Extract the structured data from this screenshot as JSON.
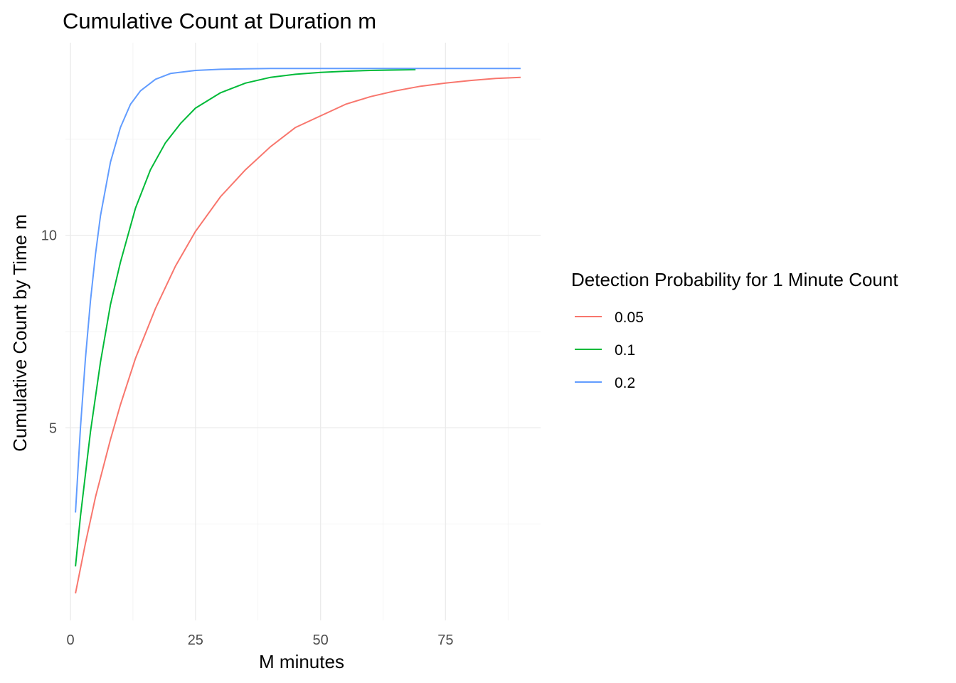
{
  "chart_data": {
    "type": "line",
    "title": "Cumulative Count at Duration m",
    "xlabel": "M minutes",
    "ylabel": "Cumulative Count by Time m",
    "xlim": [
      -1,
      94
    ],
    "ylim": [
      0,
      15
    ],
    "x_ticks": [
      0,
      25,
      50,
      75
    ],
    "y_ticks": [
      5,
      10
    ],
    "grid": true,
    "legend": {
      "title": "Detection Probability for 1 Minute Count",
      "position": "right"
    },
    "series": [
      {
        "name": "0.05",
        "color": "#F8766D",
        "x": [
          1,
          3,
          5,
          8,
          10,
          13,
          17,
          21,
          25,
          30,
          35,
          40,
          45,
          50,
          55,
          60,
          65,
          70,
          75,
          80,
          85,
          90
        ],
        "y": [
          0.7,
          2.0,
          3.2,
          4.7,
          5.6,
          6.8,
          8.1,
          9.2,
          10.1,
          11.0,
          11.7,
          12.3,
          12.8,
          13.1,
          13.4,
          13.6,
          13.75,
          13.87,
          13.95,
          14.02,
          14.07,
          14.1
        ]
      },
      {
        "name": "0.1",
        "color": "#00BA38",
        "x": [
          1,
          2,
          4,
          6,
          8,
          10,
          13,
          16,
          19,
          22,
          25,
          30,
          35,
          40,
          45,
          50,
          55,
          60,
          65,
          69
        ],
        "y": [
          1.4,
          2.7,
          4.9,
          6.7,
          8.2,
          9.3,
          10.7,
          11.7,
          12.4,
          12.9,
          13.3,
          13.7,
          13.95,
          14.1,
          14.18,
          14.23,
          14.26,
          14.28,
          14.29,
          14.3
        ]
      },
      {
        "name": "0.2",
        "color": "#619CFF",
        "x": [
          1,
          2,
          3,
          4,
          5,
          6,
          8,
          10,
          12,
          14,
          17,
          20,
          25,
          30,
          35,
          40,
          50,
          60,
          70,
          80,
          90
        ],
        "y": [
          2.8,
          5.0,
          6.8,
          8.3,
          9.5,
          10.5,
          11.9,
          12.8,
          13.4,
          13.75,
          14.05,
          14.2,
          14.28,
          14.31,
          14.32,
          14.33,
          14.33,
          14.33,
          14.33,
          14.33,
          14.33
        ]
      }
    ]
  }
}
